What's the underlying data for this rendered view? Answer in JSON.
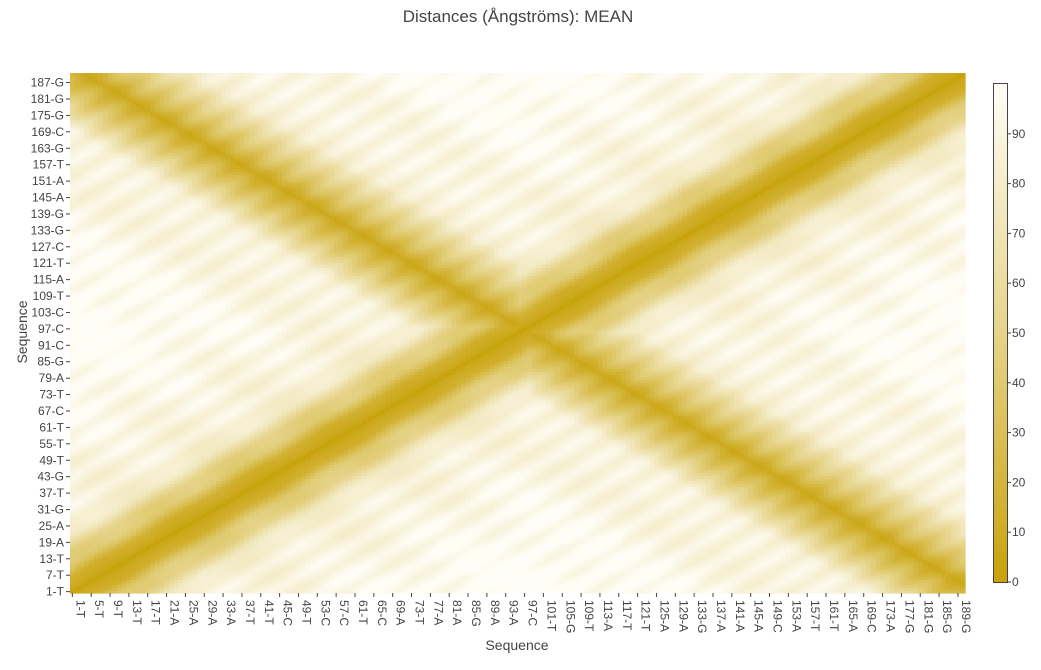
{
  "chart_data": {
    "type": "heatmap",
    "title": "Distances (Ångströms): MEAN",
    "xlabel": "Sequence",
    "ylabel": "Sequence",
    "sequence_length": 190,
    "x_tick_labels": [
      "1-T",
      "5-T",
      "9-T",
      "13-T",
      "17-T",
      "21-A",
      "25-A",
      "29-A",
      "33-A",
      "37-T",
      "41-T",
      "45-C",
      "49-T",
      "53-C",
      "57-C",
      "61-T",
      "65-C",
      "69-A",
      "73-T",
      "77-A",
      "81-A",
      "85-G",
      "89-A",
      "93-A",
      "97-C",
      "101-T",
      "105-G",
      "109-T",
      "113-A",
      "117-T",
      "121-T",
      "125-A",
      "129-A",
      "133-G",
      "137-A",
      "141-A",
      "145-A",
      "149-C",
      "153-A",
      "157-T",
      "161-T",
      "165-A",
      "169-C",
      "173-A",
      "177-G",
      "181-G",
      "185-G",
      "189-G"
    ],
    "y_tick_labels": [
      "1-T",
      "7-T",
      "13-T",
      "19-A",
      "25-A",
      "31-G",
      "37-T",
      "43-G",
      "49-T",
      "55-T",
      "61-T",
      "67-C",
      "73-T",
      "79-A",
      "85-G",
      "91-C",
      "97-C",
      "103-C",
      "109-T",
      "115-A",
      "121-T",
      "127-C",
      "133-G",
      "139-G",
      "145-A",
      "151-A",
      "157-T",
      "163-G",
      "169-C",
      "175-G",
      "181-G",
      "187-G"
    ],
    "zmin": 0,
    "zmax": 100,
    "colorbar_ticks": [
      0,
      10,
      20,
      30,
      40,
      50,
      60,
      70,
      80,
      90
    ],
    "colorscale": [
      [
        0.0,
        "#c8a20a"
      ],
      [
        0.5,
        "#e6d48a"
      ],
      [
        1.0,
        "#fffdf6"
      ]
    ],
    "distance_model": {
      "description": "symmetric matrix; zero on the diagonal, also low on the anti-diagonal (hairpin fold about residue 97)",
      "fold_center": 96,
      "helical_period": 10.5
    }
  }
}
